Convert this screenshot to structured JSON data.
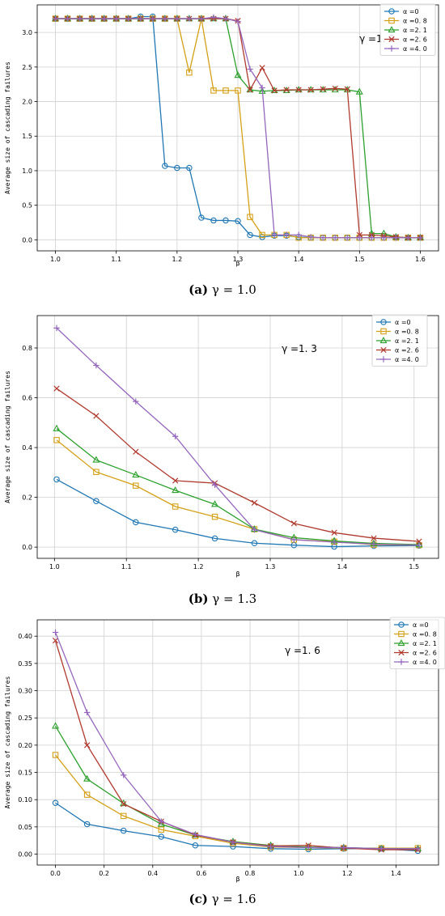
{
  "chart_data": [
    {
      "type": "line",
      "caption_letter": "(a)",
      "caption_text": "γ = 1.0",
      "annotation": "γ =1. 0",
      "xlabel": "β",
      "ylabel": "Average size of cascading failures",
      "xlim": [
        0.97,
        1.63
      ],
      "ylim": [
        -0.16,
        3.4
      ],
      "xticks": [
        1.0,
        1.1,
        1.2,
        1.3,
        1.4,
        1.5,
        1.6
      ],
      "xtick_labels": [
        "1.0",
        "1.1",
        "1.2",
        "1.3",
        "1.4",
        "1.5",
        "1.6"
      ],
      "yticks": [
        0.0,
        0.5,
        1.0,
        1.5,
        2.0,
        2.5,
        3.0
      ],
      "ytick_labels": [
        "0.0",
        "0.5",
        "1.0",
        "1.5",
        "2.0",
        "2.5",
        "3.0"
      ],
      "grid": true,
      "legend_position": "top-right",
      "x": [
        1.0,
        1.02,
        1.04,
        1.06,
        1.08,
        1.1,
        1.12,
        1.14,
        1.16,
        1.18,
        1.2,
        1.22,
        1.24,
        1.26,
        1.28,
        1.3,
        1.32,
        1.34,
        1.36,
        1.38,
        1.4,
        1.42,
        1.44,
        1.46,
        1.48,
        1.5,
        1.52,
        1.54,
        1.56,
        1.58,
        1.6
      ],
      "series": [
        {
          "name": "α =0",
          "color": "#1f77b4",
          "marker": "circle",
          "values": [
            3.2,
            3.2,
            3.2,
            3.2,
            3.2,
            3.2,
            3.2,
            3.23,
            3.23,
            1.07,
            1.04,
            1.04,
            0.32,
            0.28,
            0.28,
            0.27,
            0.07,
            0.04,
            0.06,
            0.06,
            0.04,
            0.03,
            0.03,
            0.03,
            0.03,
            0.03,
            0.03,
            0.03,
            0.03,
            0.03,
            0.03
          ]
        },
        {
          "name": "α =0. 8",
          "color": "#d4a017",
          "marker": "square",
          "values": [
            3.2,
            3.2,
            3.2,
            3.2,
            3.2,
            3.2,
            3.2,
            3.2,
            3.2,
            3.2,
            3.2,
            2.42,
            3.2,
            2.16,
            2.16,
            2.16,
            0.33,
            0.07,
            0.07,
            0.07,
            0.03,
            0.03,
            0.03,
            0.03,
            0.03,
            0.03,
            0.03,
            0.03,
            0.03,
            0.03,
            0.03
          ]
        },
        {
          "name": "α =2. 1",
          "color": "#2ca02c",
          "marker": "triangle",
          "values": [
            3.2,
            3.2,
            3.2,
            3.2,
            3.2,
            3.2,
            3.2,
            3.2,
            3.2,
            3.2,
            3.2,
            3.2,
            3.2,
            3.2,
            3.2,
            2.38,
            2.17,
            2.15,
            2.16,
            2.16,
            2.17,
            2.17,
            2.17,
            2.17,
            2.17,
            2.14,
            0.09,
            0.09,
            0.04,
            0.03,
            0.03
          ]
        },
        {
          "name": "α =2. 6",
          "color": "#b03a2e",
          "marker": "x",
          "values": [
            3.2,
            3.2,
            3.2,
            3.2,
            3.2,
            3.2,
            3.2,
            3.2,
            3.2,
            3.2,
            3.2,
            3.2,
            3.2,
            3.2,
            3.2,
            3.17,
            2.17,
            2.49,
            2.16,
            2.17,
            2.17,
            2.17,
            2.18,
            2.19,
            2.18,
            0.07,
            0.07,
            0.06,
            0.04,
            0.03,
            0.03
          ]
        },
        {
          "name": "α =4. 0",
          "color": "#9467bd",
          "marker": "plus",
          "values": [
            3.2,
            3.2,
            3.2,
            3.2,
            3.2,
            3.2,
            3.2,
            3.2,
            3.2,
            3.2,
            3.2,
            3.2,
            3.2,
            3.22,
            3.2,
            3.16,
            2.47,
            2.2,
            0.07,
            0.07,
            0.07,
            0.04,
            0.03,
            0.03,
            0.03,
            0.03,
            0.03,
            0.03,
            0.03,
            0.03,
            0.03
          ]
        }
      ]
    },
    {
      "type": "line",
      "caption_letter": "(b)",
      "caption_text": "γ = 1.3",
      "annotation": "γ =1. 3",
      "xlabel": "β",
      "ylabel": "Average size of cascading failures",
      "xlim": [
        0.976,
        1.534
      ],
      "ylim": [
        -0.045,
        0.93
      ],
      "xticks": [
        1.0,
        1.1,
        1.2,
        1.3,
        1.4,
        1.5
      ],
      "xtick_labels": [
        "1.0",
        "1.1",
        "1.2",
        "1.3",
        "1.4",
        "1.5"
      ],
      "yticks": [
        0.0,
        0.2,
        0.4,
        0.6,
        0.8
      ],
      "ytick_labels": [
        "0.0",
        "0.2",
        "0.4",
        "0.6",
        "0.8"
      ],
      "grid": true,
      "legend_position": "top-right",
      "x": [
        1.003,
        1.058,
        1.113,
        1.168,
        1.223,
        1.278,
        1.333,
        1.389,
        1.444,
        1.507
      ],
      "series": [
        {
          "name": "α =0",
          "color": "#1f77b4",
          "marker": "circle",
          "values": [
            0.272,
            0.185,
            0.1,
            0.07,
            0.035,
            0.016,
            0.008,
            0.002,
            0.005,
            0.006
          ]
        },
        {
          "name": "α =0. 8",
          "color": "#d4a017",
          "marker": "square",
          "values": [
            0.43,
            0.302,
            0.247,
            0.163,
            0.122,
            0.072,
            0.03,
            0.022,
            0.01,
            0.008
          ]
        },
        {
          "name": "α =2. 1",
          "color": "#2ca02c",
          "marker": "triangle",
          "values": [
            0.476,
            0.35,
            0.29,
            0.228,
            0.172,
            0.072,
            0.038,
            0.025,
            0.015,
            0.01
          ]
        },
        {
          "name": "α =2. 6",
          "color": "#b03a2e",
          "marker": "x",
          "values": [
            0.637,
            0.527,
            0.383,
            0.267,
            0.257,
            0.178,
            0.095,
            0.058,
            0.036,
            0.023
          ]
        },
        {
          "name": "α =4. 0",
          "color": "#9467bd",
          "marker": "plus",
          "values": [
            0.88,
            0.73,
            0.585,
            0.445,
            0.25,
            0.07,
            0.03,
            0.02,
            0.012,
            0.008
          ]
        }
      ]
    },
    {
      "type": "line",
      "caption_letter": "(c)",
      "caption_text": "γ = 1.6",
      "annotation": "γ =1. 6",
      "xlabel": "β",
      "ylabel": "Average size of cascading failures",
      "xlim": [
        -0.075,
        1.575
      ],
      "ylim": [
        -0.02,
        0.43
      ],
      "xticks": [
        0.0,
        0.2,
        0.4,
        0.6,
        0.8,
        1.0,
        1.2,
        1.4
      ],
      "xtick_labels": [
        "0.0",
        "0.2",
        "0.4",
        "0.6",
        "0.8",
        "1.0",
        "1.2",
        "1.4"
      ],
      "yticks": [
        0.0,
        0.05,
        0.1,
        0.15,
        0.2,
        0.25,
        0.3,
        0.35,
        0.4
      ],
      "ytick_labels": [
        "0.00",
        "0.05",
        "0.10",
        "0.15",
        "0.20",
        "0.25",
        "0.30",
        "0.35",
        "0.40"
      ],
      "grid": true,
      "legend_position": "top-right",
      "x": [
        0.0,
        0.13,
        0.28,
        0.435,
        0.575,
        0.73,
        0.885,
        1.04,
        1.185,
        1.34,
        1.49
      ],
      "series": [
        {
          "name": "α =0",
          "color": "#1f77b4",
          "marker": "circle",
          "values": [
            0.094,
            0.055,
            0.043,
            0.032,
            0.016,
            0.014,
            0.01,
            0.009,
            0.01,
            0.01,
            0.006
          ]
        },
        {
          "name": "α =0. 8",
          "color": "#d4a017",
          "marker": "square",
          "values": [
            0.182,
            0.109,
            0.07,
            0.045,
            0.033,
            0.02,
            0.013,
            0.012,
            0.011,
            0.011,
            0.011
          ]
        },
        {
          "name": "α =2. 1",
          "color": "#2ca02c",
          "marker": "triangle",
          "values": [
            0.235,
            0.138,
            0.093,
            0.055,
            0.035,
            0.023,
            0.016,
            0.013,
            0.012,
            0.01,
            0.01
          ]
        },
        {
          "name": "α =2. 6",
          "color": "#b03a2e",
          "marker": "x",
          "values": [
            0.392,
            0.2,
            0.092,
            0.06,
            0.035,
            0.022,
            0.015,
            0.016,
            0.011,
            0.008,
            0.008
          ]
        },
        {
          "name": "α =4. 0",
          "color": "#9467bd",
          "marker": "plus",
          "values": [
            0.407,
            0.26,
            0.145,
            0.06,
            0.036,
            0.022,
            0.014,
            0.012,
            0.012,
            0.01,
            0.01
          ]
        }
      ]
    }
  ]
}
